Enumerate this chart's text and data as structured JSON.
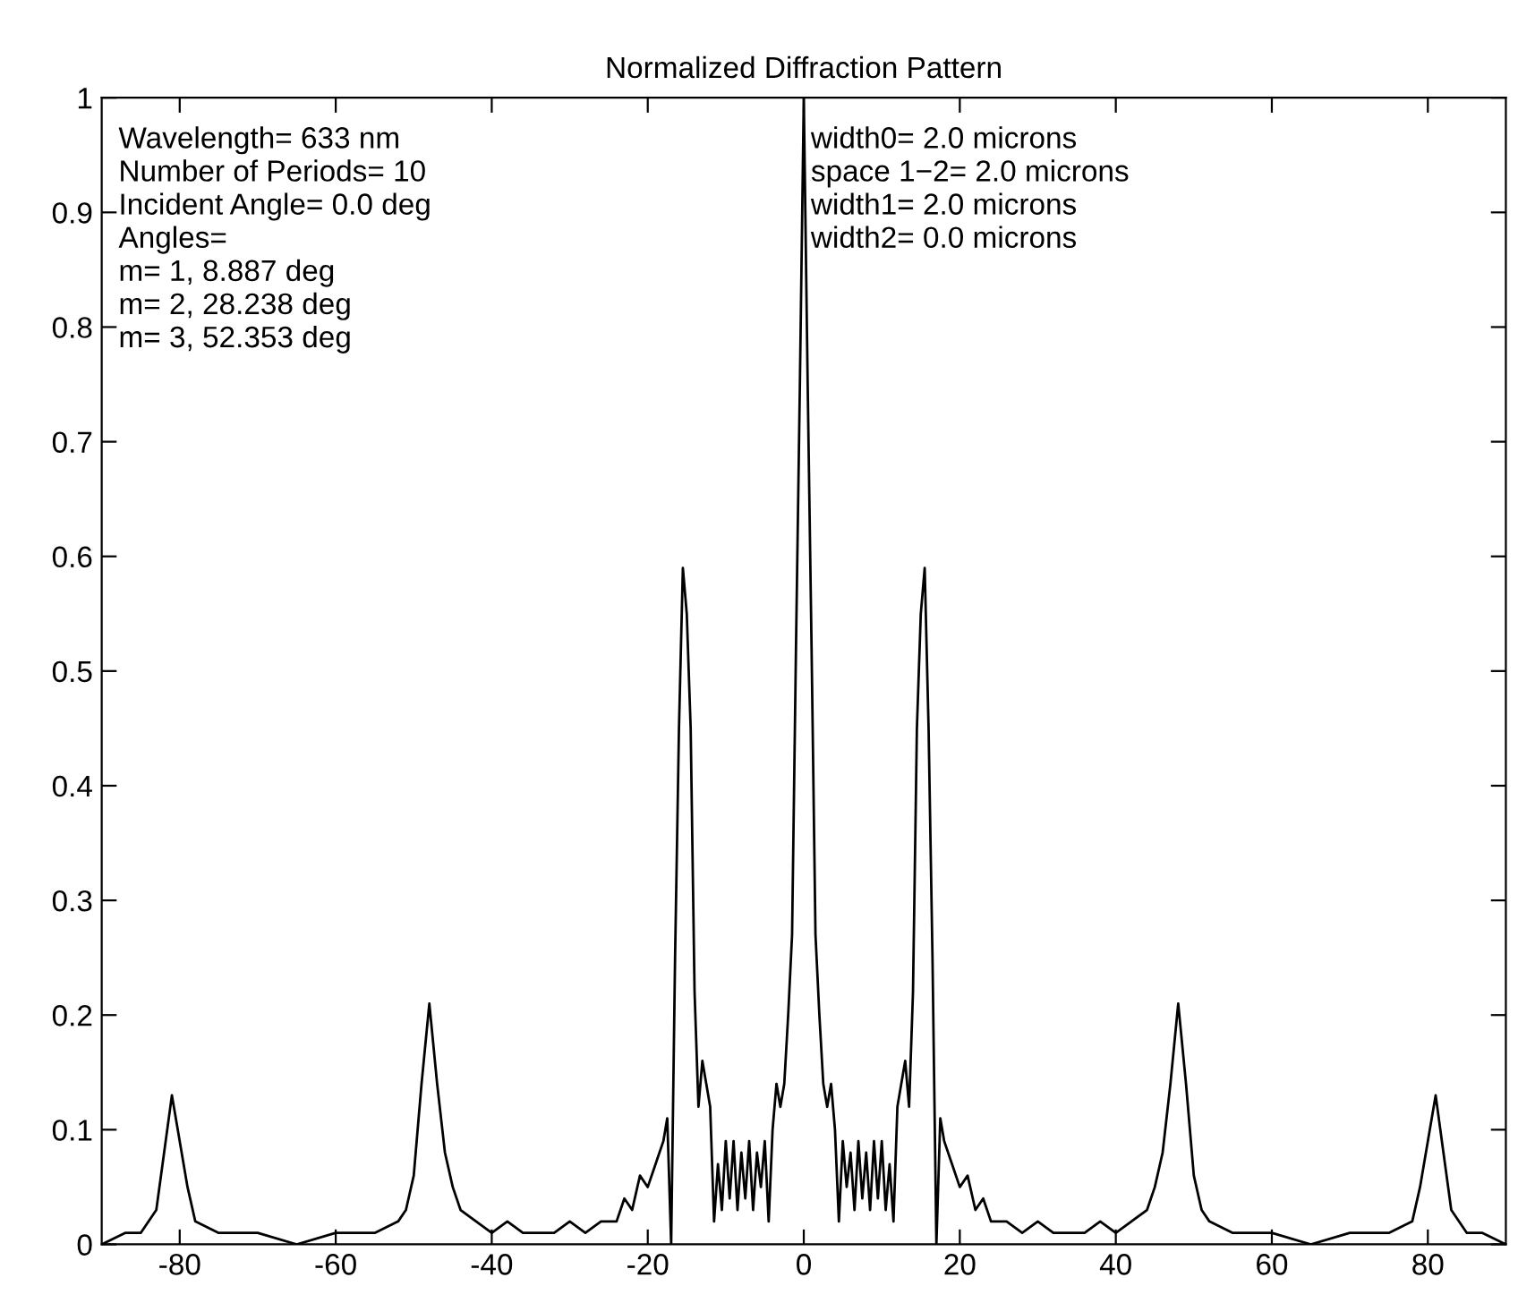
{
  "chart_data": {
    "type": "line",
    "title": "Normalized Diffraction Pattern",
    "x": [
      -90,
      -87,
      -85,
      -83,
      -82,
      -81,
      -80,
      -79,
      -78,
      -75,
      -70,
      -65,
      -60,
      -55,
      -52,
      -51,
      -50,
      -49,
      -48,
      -47,
      -46,
      -45,
      -44,
      -42,
      -40,
      -38,
      -36,
      -34,
      -32,
      -30,
      -28,
      -26,
      -24,
      -23,
      -22,
      -21,
      -20,
      -19,
      -18,
      -17.5,
      -17,
      -16.5,
      -16,
      -15.5,
      -15,
      -14.5,
      -14,
      -13.5,
      -13,
      -12.5,
      -12,
      -11.5,
      -11,
      -10.5,
      -10,
      -9.5,
      -9,
      -8.5,
      -8,
      -7.5,
      -7,
      -6.5,
      -6,
      -5.5,
      -5,
      -4.5,
      -4,
      -3.5,
      -3,
      -2.5,
      -2,
      -1.5,
      -1,
      -0.5,
      0,
      0.5,
      1,
      1.5,
      2,
      2.5,
      3,
      3.5,
      4,
      4.5,
      5,
      5.5,
      6,
      6.5,
      7,
      7.5,
      8,
      8.5,
      9,
      9.5,
      10,
      10.5,
      11,
      11.5,
      12,
      12.5,
      13,
      13.5,
      14,
      14.5,
      15,
      15.5,
      16,
      16.5,
      17,
      17.5,
      18,
      19,
      20,
      21,
      22,
      23,
      24,
      26,
      28,
      30,
      32,
      34,
      36,
      38,
      40,
      42,
      44,
      45,
      46,
      47,
      48,
      49,
      50,
      51,
      52,
      55,
      60,
      65,
      70,
      75,
      78,
      79,
      80,
      81,
      82,
      83,
      85,
      87,
      90
    ],
    "series": [
      {
        "color": "#000000",
        "values": [
          0,
          0.01,
          0.01,
          0.03,
          0.08,
          0.13,
          0.09,
          0.05,
          0.02,
          0.01,
          0.01,
          0,
          0.01,
          0.01,
          0.02,
          0.03,
          0.06,
          0.14,
          0.21,
          0.14,
          0.08,
          0.05,
          0.03,
          0.02,
          0.01,
          0.02,
          0.01,
          0.01,
          0.01,
          0.02,
          0.01,
          0.02,
          0.02,
          0.04,
          0.03,
          0.06,
          0.05,
          0.07,
          0.09,
          0.11,
          0,
          0.25,
          0.45,
          0.59,
          0.55,
          0.45,
          0.22,
          0.12,
          0.16,
          0.14,
          0.12,
          0.02,
          0.07,
          0.03,
          0.09,
          0.04,
          0.09,
          0.03,
          0.08,
          0.04,
          0.09,
          0.03,
          0.08,
          0.05,
          0.09,
          0.02,
          0.1,
          0.14,
          0.12,
          0.14,
          0.2,
          0.27,
          0.52,
          0.75,
          1,
          0.75,
          0.52,
          0.27,
          0.2,
          0.14,
          0.12,
          0.14,
          0.1,
          0.02,
          0.09,
          0.05,
          0.08,
          0.03,
          0.09,
          0.04,
          0.08,
          0.03,
          0.09,
          0.04,
          0.09,
          0.03,
          0.07,
          0.02,
          0.12,
          0.14,
          0.16,
          0.12,
          0.22,
          0.45,
          0.55,
          0.59,
          0.45,
          0.25,
          0,
          0.11,
          0.09,
          0.07,
          0.05,
          0.06,
          0.03,
          0.04,
          0.02,
          0.02,
          0.01,
          0.02,
          0.01,
          0.01,
          0.01,
          0.02,
          0.01,
          0.02,
          0.03,
          0.05,
          0.08,
          0.14,
          0.21,
          0.14,
          0.06,
          0.03,
          0.02,
          0.01,
          0.01,
          0,
          0.01,
          0.01,
          0.02,
          0.05,
          0.09,
          0.13,
          0.08,
          0.03,
          0.01,
          0.01,
          0
        ]
      }
    ],
    "xlim": [
      -90,
      90
    ],
    "ylim": [
      0,
      1
    ],
    "xticks": [
      -80,
      -60,
      -40,
      -20,
      0,
      20,
      40,
      60,
      80
    ],
    "yticks": [
      0,
      0.1,
      0.2,
      0.3,
      0.4,
      0.5,
      0.6,
      0.7,
      0.8,
      0.9,
      1
    ],
    "grid": false,
    "marker": "none",
    "line_style": "solid",
    "annotations": [
      "Wavelength= 633 nm\nNumber of Periods= 10\nIncident Angle= 0.0 deg\nAngles=\nm= 1, 8.887 deg\nm= 2, 28.238 deg\nm= 3, 52.353 deg",
      "width0= 2.0 microns\nspace 1−2= 2.0 microns\nwidth1= 2.0 microns\nwidth2= 0.0 microns"
    ]
  }
}
